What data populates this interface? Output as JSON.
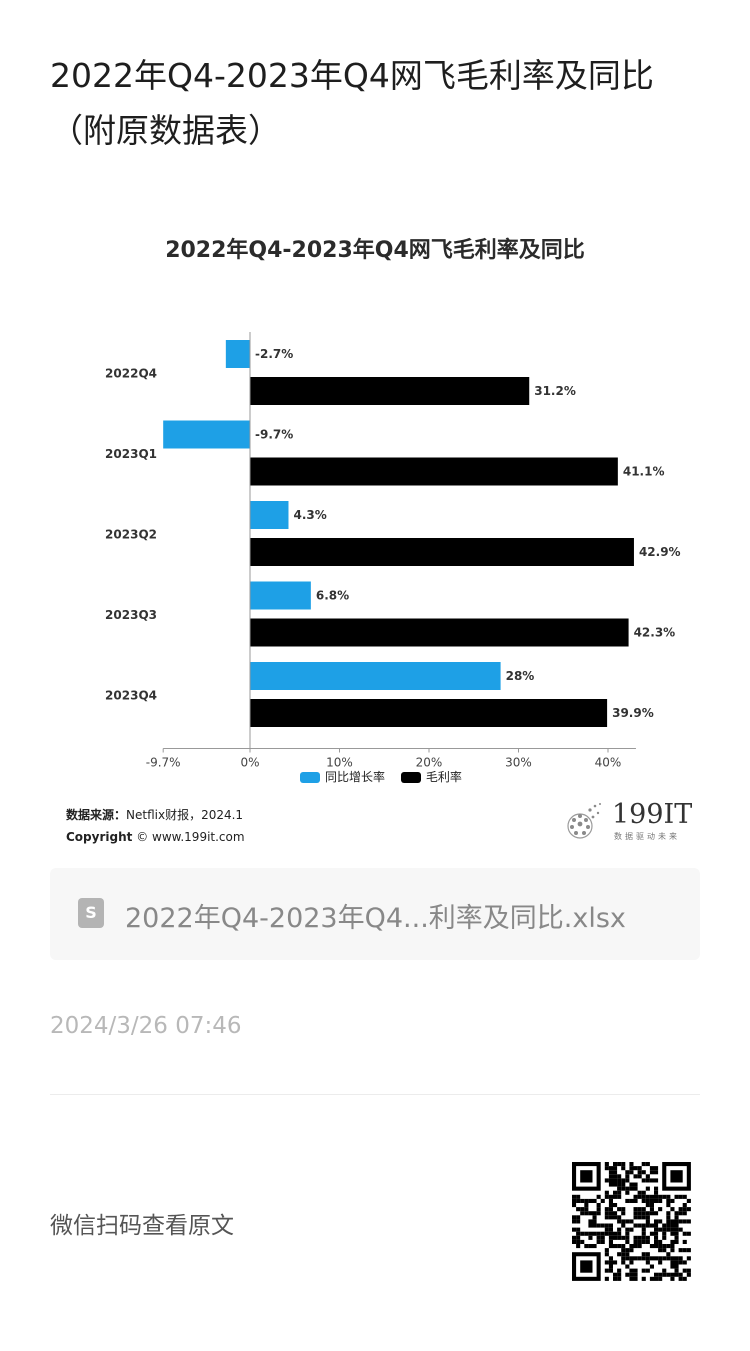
{
  "page": {
    "title": "2022年Q4-2023年Q4网飞毛利率及同比（附原数据表）",
    "file_name": "2022年Q4-2023年Q4...利率及同比.xlsx",
    "date": "2024/3/26 07:46",
    "scan_text": "微信扫码查看原文"
  },
  "source": {
    "label": "数据来源：",
    "text": "Netflix财报，2024.1",
    "copyright_label": "Copyright",
    "copyright_text": "© www.199it.com"
  },
  "logo": {
    "name": "199IT",
    "tagline": "数据驱动未来"
  },
  "colors": {
    "yoy": "#1ea0e6",
    "gross": "#000000"
  },
  "icons": {
    "file": "spreadsheet-file-icon",
    "logo": "199it-logo-icon",
    "qr": "qr-code"
  },
  "chart_data": {
    "type": "bar",
    "orientation": "horizontal",
    "title": "2022年Q4-2023年Q4网飞毛利率及同比",
    "categories": [
      "2022Q4",
      "2023Q1",
      "2023Q2",
      "2023Q3",
      "2023Q4"
    ],
    "series": [
      {
        "name": "同比增长率",
        "values": [
          -2.7,
          -9.7,
          4.3,
          6.8,
          28
        ],
        "labels": [
          "-2.7%",
          "-9.7%",
          "4.3%",
          "6.8%",
          "28%"
        ]
      },
      {
        "name": "毛利率",
        "values": [
          31.2,
          41.1,
          42.9,
          42.3,
          39.9
        ],
        "labels": [
          "31.2%",
          "41.1%",
          "42.9%",
          "42.3%",
          "39.9%"
        ]
      }
    ],
    "xticks": [
      "-9.7%",
      "0%",
      "10%",
      "20%",
      "30%",
      "40%"
    ],
    "xtick_values": [
      -9.7,
      0,
      10,
      20,
      30,
      40
    ],
    "xlim": [
      -9.7,
      42.9
    ],
    "legend_position": "bottom",
    "grid": false
  }
}
